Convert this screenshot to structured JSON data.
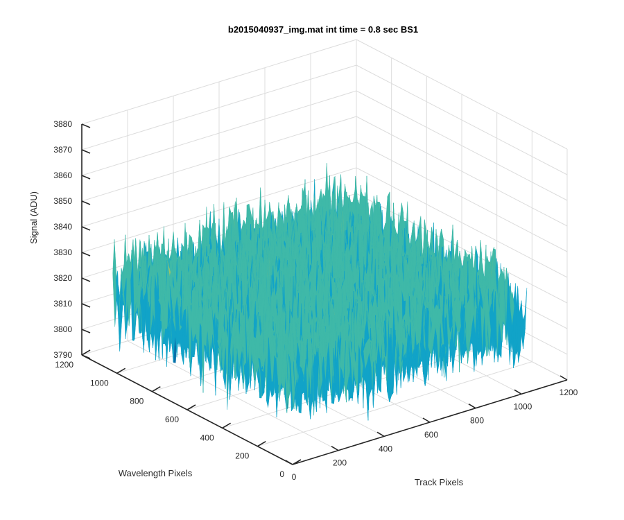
{
  "chart_data": {
    "type": "surface",
    "title": "b2015040937_img.mat int time = 0.8 sec   BS1",
    "xlabel": "Track Pixels",
    "ylabel": "Wavelength Pixels",
    "zlabel": "Signal (ADU)",
    "xlim": [
      0,
      1200
    ],
    "ylim": [
      0,
      1200
    ],
    "zlim": [
      3790,
      3880
    ],
    "x_ticks": [
      "0",
      "200",
      "400",
      "600",
      "800",
      "1000",
      "1200"
    ],
    "y_ticks": [
      "0",
      "200",
      "400",
      "600",
      "800",
      "1000",
      "1200"
    ],
    "z_ticks": [
      "3790",
      "3800",
      "3810",
      "3820",
      "3830",
      "3840",
      "3850",
      "3860",
      "3870",
      "3880"
    ],
    "surface": {
      "x_range": [
        0,
        1024
      ],
      "y_range": [
        0,
        1024
      ],
      "mean_signal": 3822,
      "noise_min": 3795,
      "noise_max": 3862
    },
    "grid": true,
    "colormap": [
      "#0a6ea8",
      "#11a3c8",
      "#3fb9a8",
      "#9cc36a",
      "#e0c34a"
    ]
  }
}
